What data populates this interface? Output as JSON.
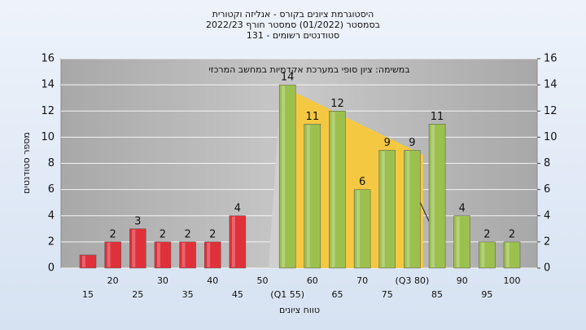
{
  "chart_data": {
    "type": "bar",
    "title": [
      "היסטוגרמת ציונים בקורס - אנליזה וקטורית",
      "בסמסטר  (01/2022)  סמסטר חורף 2022/23",
      "סטודנטים רשומים - 131"
    ],
    "annotation": "במשימה: ציון סופי במערכת אקדמיות במחשב המרכזי",
    "x_label": "טווח ציונים",
    "y_label": "מספר סטודנטים",
    "categories": [
      "15",
      "20",
      "25",
      "30",
      "35",
      "40",
      "45",
      "50",
      "(Q1 55)",
      "60",
      "65",
      "70",
      "75",
      "(Q3 80)",
      "85",
      "90",
      "95",
      "100"
    ],
    "values": [
      1,
      2,
      3,
      2,
      2,
      2,
      4,
      0,
      14,
      11,
      12,
      6,
      9,
      9,
      11,
      4,
      2,
      2
    ],
    "value_labels": [
      null,
      "2",
      "3",
      "2",
      "2",
      "2",
      "4",
      null,
      "14",
      "11",
      "12",
      "6",
      "9",
      "9",
      "11",
      "4",
      "2",
      "2"
    ],
    "colors": [
      "#e0303a",
      "#e0303a",
      "#e0303a",
      "#e0303a",
      "#e0303a",
      "#e0303a",
      "#e0303a",
      "#e0303a",
      "#9cc04e",
      "#9cc04e",
      "#9cc04e",
      "#9cc04e",
      "#9cc04e",
      "#9cc04e",
      "#9cc04e",
      "#9cc04e",
      "#9cc04e",
      "#9cc04e"
    ],
    "ylim": [
      0,
      16
    ],
    "yticks": [
      0,
      2,
      4,
      6,
      8,
      10,
      12,
      14,
      16
    ],
    "y2lim": [
      0,
      16
    ],
    "y2ticks": [
      0,
      2,
      4,
      6,
      8,
      10,
      12,
      14,
      16
    ],
    "grid": true
  }
}
